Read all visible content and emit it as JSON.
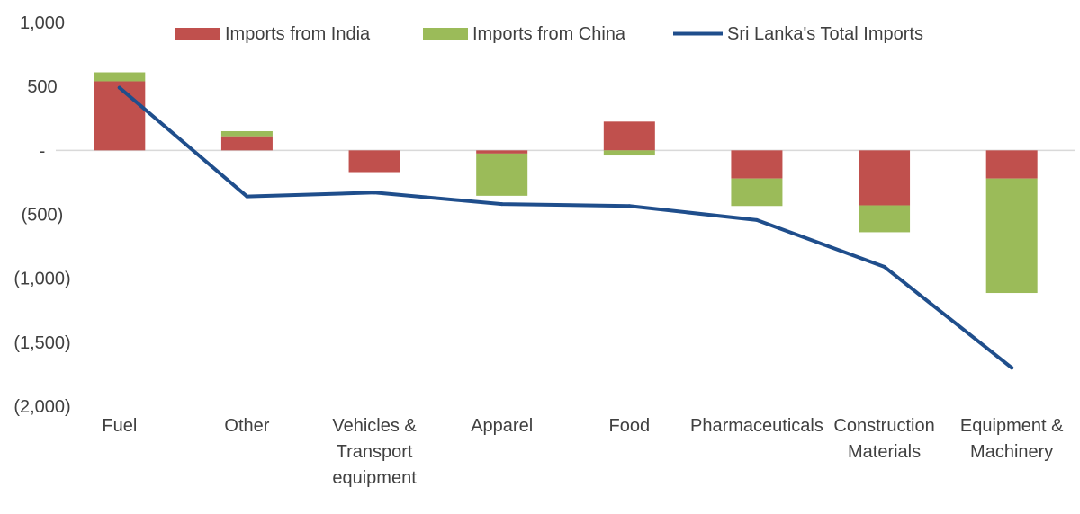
{
  "chart_data": {
    "type": "bar",
    "stacked": true,
    "categories": [
      "Fuel",
      "Other",
      "Vehicles & Transport equipment",
      "Apparel",
      "Food",
      "Pharmaceuticals",
      "Construction Materials",
      "Equipment & Machinery"
    ],
    "category_lines": [
      [
        "Fuel"
      ],
      [
        "Other"
      ],
      [
        "Vehicles &",
        "Transport",
        "equipment"
      ],
      [
        "Apparel"
      ],
      [
        "Food"
      ],
      [
        "Pharmaceuticals"
      ],
      [
        "Construction",
        "Materials"
      ],
      [
        "Equipment &",
        "Machinery"
      ]
    ],
    "series": [
      {
        "name": "Imports from India",
        "kind": "bar",
        "color": "#C0504D",
        "values": [
          540,
          110,
          -170,
          -25,
          225,
          -220,
          -430,
          -220
        ]
      },
      {
        "name": "Imports from China",
        "kind": "bar",
        "color": "#9BBB59",
        "values": [
          70,
          40,
          0,
          -330,
          -40,
          -215,
          -210,
          -895
        ]
      },
      {
        "name": "Sri Lanka's Total Imports",
        "kind": "line",
        "color": "#1F4E8C",
        "values": [
          490,
          -360,
          -330,
          -420,
          -435,
          -545,
          -910,
          -1700
        ]
      }
    ],
    "y_ticks": [
      1000,
      500,
      0,
      -500,
      -1000,
      -1500,
      -2000
    ],
    "y_tick_labels": [
      "1,000",
      "500",
      "-",
      "(500)",
      "(1,000)",
      "(1,500)",
      "(2,000)"
    ],
    "ylim": [
      -2000,
      1000
    ],
    "grid": false,
    "legend_position": "top",
    "title": "",
    "xlabel": "",
    "ylabel": ""
  }
}
